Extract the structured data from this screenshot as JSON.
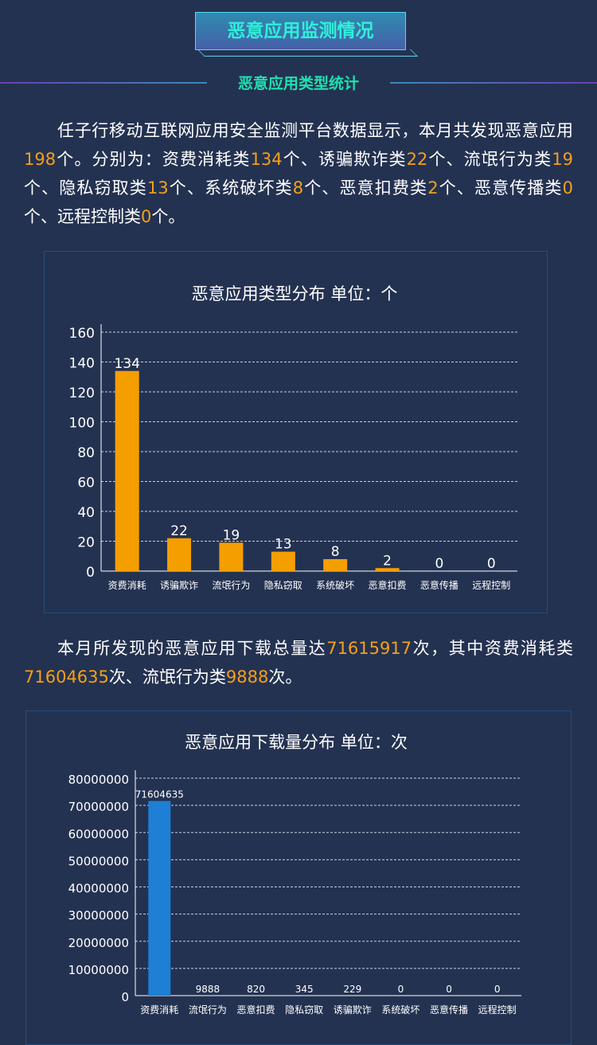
{
  "header": {
    "title": "恶意应用监测情况",
    "subtitle": "恶意应用类型统计"
  },
  "para1": [
    {
      "t": "任子行移动互联网应用安全监测平台数据显示，本月共发现恶意应用"
    },
    {
      "t": "198",
      "h": 1
    },
    {
      "t": "个。分别为：资费消耗类"
    },
    {
      "t": "134",
      "h": 1
    },
    {
      "t": "个、诱骗欺诈类"
    },
    {
      "t": "22",
      "h": 1
    },
    {
      "t": "个、流氓行为类"
    },
    {
      "t": "19",
      "h": 1
    },
    {
      "t": "个、隐私窃取类"
    },
    {
      "t": "13",
      "h": 1
    },
    {
      "t": "个、系统破坏类"
    },
    {
      "t": "8",
      "h": 1
    },
    {
      "t": "个、恶意扣费类"
    },
    {
      "t": "2",
      "h": 1
    },
    {
      "t": "个、恶意传播类"
    },
    {
      "t": "0",
      "h": 1
    },
    {
      "t": "个、远程控制类"
    },
    {
      "t": "0",
      "h": 1
    },
    {
      "t": "个。"
    }
  ],
  "para2": [
    {
      "t": "本月所发现的恶意应用下载总量达"
    },
    {
      "t": "71615917",
      "h": 1
    },
    {
      "t": "次，其中资费消耗类"
    },
    {
      "t": "71604635",
      "h": 1
    },
    {
      "t": "次、流氓行为类"
    },
    {
      "t": "9888",
      "h": 1
    },
    {
      "t": "次。"
    }
  ],
  "colors": {
    "bg": "#243251",
    "highlight": "#f5a01a",
    "bar1": "#f59e00",
    "bar2": "#1e7fd4",
    "title": "#2ff0d8",
    "subtitle": "#1fe0b0"
  },
  "chart_data": [
    {
      "type": "bar",
      "title": "恶意应用类型分布   单位：个",
      "categories": [
        "资费消耗",
        "诱骗欺诈",
        "流氓行为",
        "隐私窃取",
        "系统破坏",
        "恶意扣费",
        "恶意传播",
        "远程控制"
      ],
      "values": [
        134,
        22,
        19,
        13,
        8,
        2,
        0,
        0
      ],
      "ylim": [
        0,
        160
      ],
      "yticks": [
        0,
        20,
        40,
        60,
        80,
        100,
        120,
        140,
        160
      ],
      "grid": true,
      "color": "#f59e00"
    },
    {
      "type": "bar",
      "title": "恶意应用下载量分布   单位：次",
      "categories": [
        "资费消耗",
        "流氓行为",
        "恶意扣费",
        "隐私窃取",
        "诱骗欺诈",
        "系统破坏",
        "恶意传播",
        "远程控制"
      ],
      "values": [
        71604635,
        9888,
        820,
        345,
        229,
        0,
        0,
        0
      ],
      "ylim": [
        0,
        80000000
      ],
      "yticks": [
        0,
        10000000,
        20000000,
        30000000,
        40000000,
        50000000,
        60000000,
        70000000,
        80000000
      ],
      "grid": true,
      "color": "#1e7fd4"
    }
  ]
}
